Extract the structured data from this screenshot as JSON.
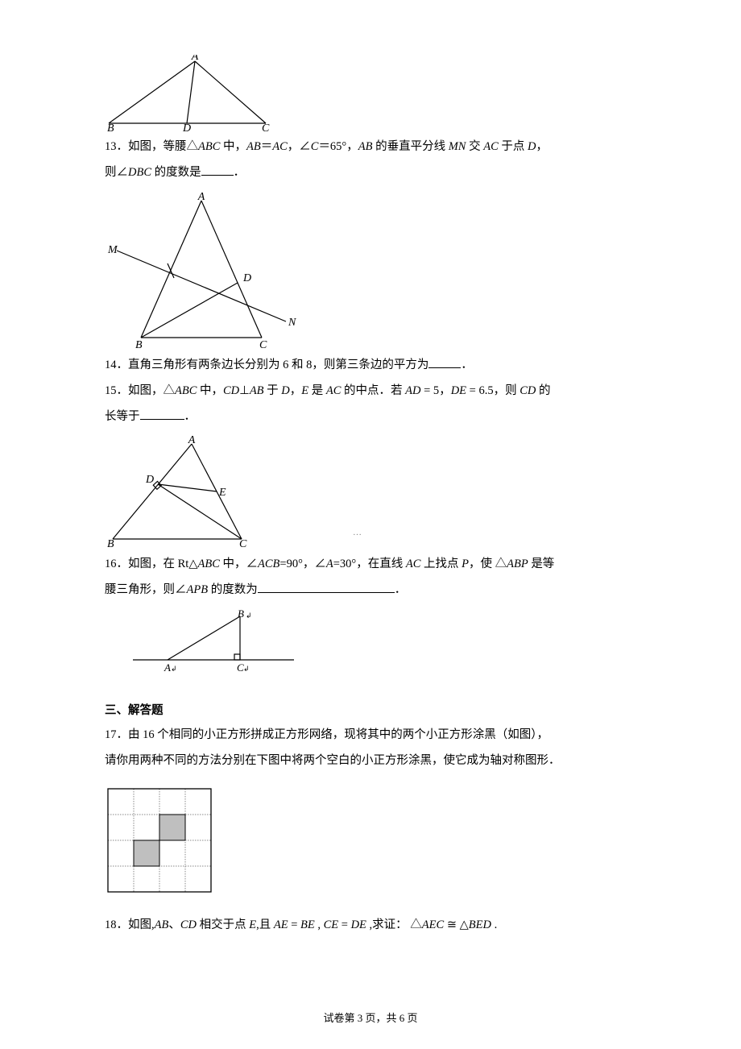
{
  "fig12": {
    "labels": {
      "A": "A",
      "B": "B",
      "C": "C",
      "D": "D"
    },
    "stroke": "#000000",
    "label_fontsize": 14,
    "label_style": "italic"
  },
  "q13": {
    "num": "13．",
    "text_a": "如图，等腰△",
    "abc": "ABC",
    "text_b": " 中，",
    "ab": "AB",
    "eq": "＝",
    "ac": "AC",
    "text_c": "，∠",
    "c": "C",
    "c_eq": "＝65°，",
    "ab2": "AB",
    "text_d": " 的垂直平分线 ",
    "mn": "MN",
    "text_e": " 交 ",
    "ac2": "AC",
    "text_f": " 于点 ",
    "d": "D",
    "text_g": "，",
    "line2_a": "则∠",
    "dbc": "DBC",
    "line2_b": " 的度数是",
    "period": "．"
  },
  "fig13": {
    "labels": {
      "A": "A",
      "B": "B",
      "C": "C",
      "D": "D",
      "M": "M",
      "N": "N"
    },
    "stroke": "#000000"
  },
  "q14": {
    "num": "14．",
    "text_a": "直角三角形有两条边长分别为 6 和 8，则第三条边的平方为",
    "period": "．"
  },
  "q15": {
    "num": "15．",
    "text_a": "如图，",
    "tri": "△",
    "abc": "ABC",
    "text_b": " 中，",
    "cd": "CD",
    "perp": "⊥",
    "ab": "AB",
    "text_c": " 于 ",
    "d": "D",
    "text_d": "，",
    "e": "E",
    "text_e": " 是 ",
    "ac": "AC",
    "text_f": " 的中点．若 ",
    "ad": "AD",
    "eq5": "= 5",
    "text_g": "，",
    "de": "DE",
    "eq65": "= 6.5",
    "text_h": "，则 ",
    "cd2": "CD",
    "text_i": " 的",
    "line2": "长等于",
    "period": "．"
  },
  "fig15": {
    "labels": {
      "A": "A",
      "B": "B",
      "C": "C",
      "D": "D",
      "E": "E"
    },
    "stroke": "#000000"
  },
  "q16": {
    "num": "16．",
    "text_a": "如图，在 Rt",
    "tri": "△",
    "abc": "ABC",
    "text_b": " 中，∠",
    "acb": "ACB",
    "acb_eq": "=90°，∠",
    "a": "A",
    "a_eq": "=30°，在直线 ",
    "ac": "AC",
    "text_c": " 上找点 ",
    "p": "P",
    "text_d": "，使 ",
    "tri2": "△",
    "abp": "ABP",
    "text_e": " 是等",
    "line2_a": "腰三角形，则∠",
    "apb": "APB",
    "line2_b": " 的度数为",
    "period": "．"
  },
  "fig16": {
    "labels": {
      "A": "A",
      "B": "B",
      "C": "C"
    },
    "stroke": "#000000"
  },
  "section3": {
    "title": "三、解答题"
  },
  "q17": {
    "num": "17．",
    "text_a": "由 16 个相同的小正方形拼成正方形网络，现将其中的两个小正方形涂黑（如图），",
    "line2": "请你用两种不同的方法分别在下图中将两个空白的小正方形涂黑，使它成为轴对称图形．"
  },
  "fig17": {
    "grid_size": 4,
    "cell": 32,
    "border_color": "#000000",
    "dash_color": "#888888",
    "shaded": [
      [
        2,
        1
      ],
      [
        1,
        2
      ]
    ],
    "shade_fill": "#bfbfbf"
  },
  "q18": {
    "num": "18．",
    "text_a": "如图,",
    "ab": "AB",
    "text_b": "、",
    "cd": "CD",
    "text_c": " 相交于点 ",
    "e1": "E",
    "text_d": ",且 ",
    "ae": "AE",
    "eq": " = ",
    "be": "BE",
    "text_e": " , ",
    "ce": "CE",
    "eq2": " = ",
    "de": "DE",
    "text_f": " ,求证： ",
    "tri": "△",
    "aec": "AEC",
    "cong": " ≅ ",
    "tri2": "△",
    "bed": "BED",
    "text_g": " ."
  },
  "footer": {
    "text": "试卷第 3 页，共 6 页"
  }
}
